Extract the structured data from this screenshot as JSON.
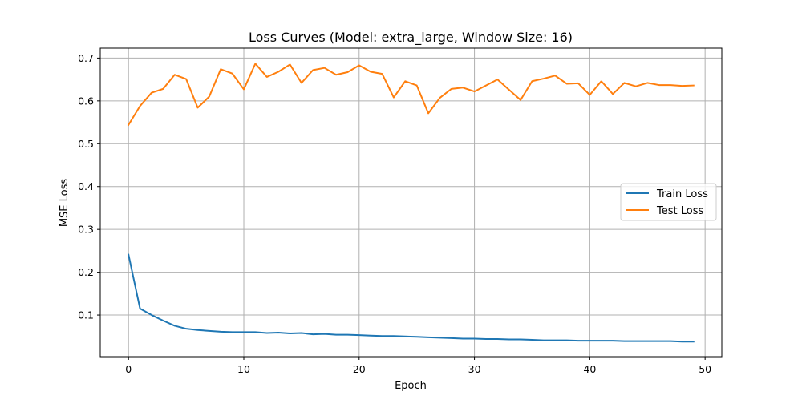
{
  "chart_data": {
    "type": "line",
    "title": "Loss Curves (Model: extra_large, Window Size: 16)",
    "xlabel": "Epoch",
    "ylabel": "MSE Loss",
    "xlim": [
      -2.45,
      51.45
    ],
    "ylim": [
      0.0028,
      0.7232
    ],
    "xticks": [
      0,
      10,
      20,
      30,
      40,
      50
    ],
    "yticks": [
      0.1,
      0.2,
      0.3,
      0.4,
      0.5,
      0.6,
      0.7
    ],
    "xtick_labels": [
      "0",
      "10",
      "20",
      "30",
      "40",
      "50"
    ],
    "ytick_labels": [
      "0.1",
      "0.2",
      "0.3",
      "0.4",
      "0.5",
      "0.6",
      "0.7"
    ],
    "grid": true,
    "legend_position": "center-right",
    "x": [
      0,
      1,
      2,
      3,
      4,
      5,
      6,
      7,
      8,
      9,
      10,
      11,
      12,
      13,
      14,
      15,
      16,
      17,
      18,
      19,
      20,
      21,
      22,
      23,
      24,
      25,
      26,
      27,
      28,
      29,
      30,
      31,
      32,
      33,
      34,
      35,
      36,
      37,
      38,
      39,
      40,
      41,
      42,
      43,
      44,
      45,
      46,
      47,
      48,
      49
    ],
    "series": [
      {
        "name": "Train Loss",
        "color": "#1f77b4",
        "values": [
          0.241,
          0.115,
          0.1,
          0.087,
          0.075,
          0.068,
          0.065,
          0.063,
          0.061,
          0.06,
          0.06,
          0.06,
          0.058,
          0.059,
          0.057,
          0.058,
          0.055,
          0.056,
          0.054,
          0.054,
          0.053,
          0.052,
          0.051,
          0.051,
          0.05,
          0.049,
          0.048,
          0.047,
          0.046,
          0.045,
          0.045,
          0.044,
          0.044,
          0.043,
          0.043,
          0.042,
          0.041,
          0.041,
          0.041,
          0.04,
          0.04,
          0.04,
          0.04,
          0.039,
          0.039,
          0.039,
          0.039,
          0.039,
          0.038,
          0.038
        ]
      },
      {
        "name": "Test Loss",
        "color": "#ff7f0e",
        "values": [
          0.544,
          0.588,
          0.619,
          0.628,
          0.661,
          0.651,
          0.584,
          0.61,
          0.674,
          0.664,
          0.627,
          0.687,
          0.656,
          0.668,
          0.685,
          0.642,
          0.672,
          0.677,
          0.661,
          0.667,
          0.683,
          0.668,
          0.663,
          0.608,
          0.646,
          0.636,
          0.571,
          0.607,
          0.628,
          0.631,
          0.622,
          0.636,
          0.65,
          0.626,
          0.602,
          0.646,
          0.652,
          0.659,
          0.64,
          0.641,
          0.614,
          0.646,
          0.616,
          0.642,
          0.634,
          0.642,
          0.637,
          0.637,
          0.635,
          0.636
        ]
      }
    ]
  }
}
